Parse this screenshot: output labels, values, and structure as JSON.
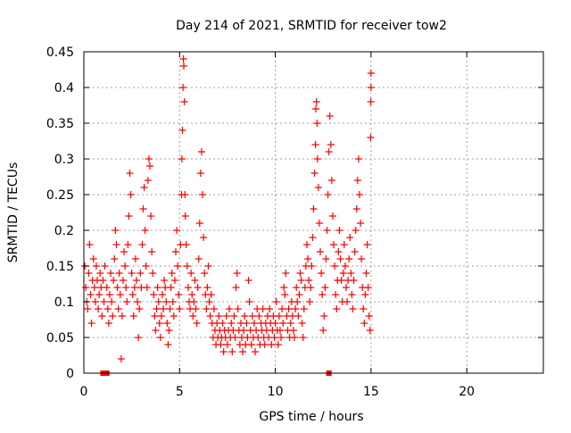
{
  "chart_data": {
    "type": "scatter",
    "title": "Day 214 of 2021, SRMTID for receiver tow2",
    "xlabel": "GPS time / hours",
    "ylabel": "SRMTID / TECUs",
    "xlim": [
      0,
      24
    ],
    "ylim": [
      0,
      0.45
    ],
    "x_ticks": [
      0,
      5,
      10,
      15,
      20
    ],
    "y_ticks": [
      0,
      0.05,
      0.1,
      0.15,
      0.2,
      0.25,
      0.3,
      0.35,
      0.4,
      0.45
    ],
    "x_tick_labels": [
      "0",
      "5",
      "10",
      "15",
      "20"
    ],
    "y_tick_labels": [
      "0",
      "0.05",
      "0.1",
      "0.15",
      "0.2",
      "0.25",
      "0.3",
      "0.35",
      "0.4",
      "0.45"
    ],
    "grid": true,
    "marker_color": "#ff0000",
    "series": [
      {
        "name": "SRMTID",
        "marker": "+",
        "x": [
          0.05,
          0.1,
          0.15,
          0.2,
          0.25,
          0.3,
          0.35,
          0.4,
          0.45,
          0.5,
          0.55,
          0.6,
          0.65,
          0.7,
          0.75,
          0.8,
          0.85,
          0.9,
          0.95,
          1.0,
          1.05,
          1.1,
          1.2,
          1.25,
          1.3,
          1.35,
          1.4,
          1.45,
          1.5,
          1.55,
          1.6,
          1.65,
          1.7,
          1.75,
          1.8,
          1.85,
          1.9,
          1.95,
          2.0,
          2.05,
          2.1,
          2.15,
          2.2,
          2.25,
          2.3,
          2.35,
          2.4,
          2.45,
          2.5,
          2.55,
          2.6,
          2.65,
          2.7,
          2.75,
          2.8,
          2.85,
          2.9,
          2.95,
          3.0,
          3.05,
          3.1,
          3.15,
          3.2,
          3.25,
          3.3,
          3.35,
          3.4,
          3.45,
          3.5,
          3.55,
          3.6,
          3.65,
          3.7,
          3.75,
          3.8,
          3.85,
          3.9,
          3.95,
          4.0,
          4.05,
          4.1,
          4.15,
          4.2,
          4.25,
          4.3,
          4.35,
          4.4,
          4.45,
          4.5,
          4.55,
          4.6,
          4.65,
          4.7,
          4.75,
          4.8,
          4.85,
          4.9,
          4.95,
          5.0,
          5.05,
          5.1,
          5.12,
          5.15,
          5.18,
          5.2,
          5.22,
          5.25,
          5.28,
          5.3,
          5.35,
          5.4,
          5.45,
          5.5,
          5.55,
          5.6,
          5.65,
          5.7,
          5.75,
          5.8,
          5.85,
          5.9,
          5.95,
          6.0,
          6.05,
          6.1,
          6.15,
          6.2,
          6.25,
          6.3,
          6.35,
          6.4,
          6.45,
          6.5,
          6.55,
          6.6,
          6.65,
          6.7,
          6.75,
          6.8,
          6.85,
          6.9,
          6.95,
          7.0,
          7.05,
          7.1,
          7.15,
          7.2,
          7.25,
          7.3,
          7.35,
          7.4,
          7.45,
          7.5,
          7.55,
          7.6,
          7.65,
          7.7,
          7.75,
          7.8,
          7.85,
          7.9,
          7.95,
          8.0,
          8.05,
          8.1,
          8.15,
          8.2,
          8.25,
          8.3,
          8.35,
          8.4,
          8.45,
          8.5,
          8.55,
          8.6,
          8.65,
          8.7,
          8.75,
          8.8,
          8.85,
          8.9,
          8.95,
          9.0,
          9.05,
          9.1,
          9.15,
          9.2,
          9.25,
          9.3,
          9.35,
          9.4,
          9.45,
          9.5,
          9.55,
          9.6,
          9.65,
          9.7,
          9.75,
          9.8,
          9.85,
          9.9,
          9.95,
          10.0,
          10.05,
          10.1,
          10.15,
          10.2,
          10.25,
          10.3,
          10.35,
          10.4,
          10.45,
          10.5,
          10.55,
          10.6,
          10.65,
          10.7,
          10.75,
          10.8,
          10.85,
          10.9,
          10.95,
          11.0,
          11.05,
          11.1,
          11.15,
          11.2,
          11.25,
          11.3,
          11.35,
          11.4,
          11.45,
          11.5,
          11.55,
          11.6,
          11.65,
          11.7,
          11.75,
          11.8,
          11.85,
          11.9,
          11.95,
          12.0,
          12.05,
          12.1,
          12.12,
          12.15,
          12.18,
          12.2,
          12.25,
          12.3,
          12.35,
          12.4,
          12.45,
          12.5,
          12.55,
          12.6,
          12.65,
          12.7,
          12.75,
          12.8,
          12.85,
          12.9,
          12.95,
          13.0,
          13.05,
          13.1,
          13.15,
          13.2,
          13.25,
          13.3,
          13.35,
          13.4,
          13.45,
          13.5,
          13.55,
          13.6,
          13.65,
          13.7,
          13.75,
          13.8,
          13.85,
          13.9,
          13.95,
          14.0,
          14.05,
          14.1,
          14.15,
          14.2,
          14.25,
          14.3,
          14.35,
          14.4,
          14.45,
          14.5,
          14.55,
          14.6,
          14.65,
          14.7,
          14.75,
          14.8,
          14.85,
          14.9,
          14.95,
          14.98,
          14.99,
          15.0,
          15.0
        ],
        "y": [
          0.15,
          0.12,
          0.1,
          0.09,
          0.14,
          0.18,
          0.11,
          0.07,
          0.13,
          0.16,
          0.12,
          0.1,
          0.15,
          0.13,
          0.09,
          0.11,
          0.14,
          0.12,
          0.08,
          0.13,
          0.1,
          0.15,
          0.12,
          0.09,
          0.07,
          0.11,
          0.14,
          0.1,
          0.08,
          0.13,
          0.16,
          0.2,
          0.18,
          0.12,
          0.09,
          0.14,
          0.11,
          0.02,
          0.08,
          0.13,
          0.17,
          0.15,
          0.12,
          0.1,
          0.18,
          0.22,
          0.28,
          0.25,
          0.14,
          0.11,
          0.08,
          0.12,
          0.16,
          0.13,
          0.1,
          0.05,
          0.09,
          0.14,
          0.12,
          0.18,
          0.23,
          0.26,
          0.2,
          0.15,
          0.12,
          0.27,
          0.3,
          0.29,
          0.22,
          0.17,
          0.14,
          0.11,
          0.08,
          0.06,
          0.09,
          0.12,
          0.1,
          0.07,
          0.05,
          0.08,
          0.11,
          0.09,
          0.13,
          0.12,
          0.1,
          0.07,
          0.04,
          0.06,
          0.09,
          0.12,
          0.14,
          0.1,
          0.08,
          0.13,
          0.17,
          0.2,
          0.15,
          0.11,
          0.09,
          0.18,
          0.25,
          0.3,
          0.34,
          0.4,
          0.44,
          0.43,
          0.38,
          0.25,
          0.22,
          0.18,
          0.15,
          0.12,
          0.1,
          0.09,
          0.14,
          0.11,
          0.08,
          0.1,
          0.13,
          0.09,
          0.07,
          0.12,
          0.16,
          0.21,
          0.28,
          0.31,
          0.25,
          0.19,
          0.14,
          0.11,
          0.09,
          0.12,
          0.15,
          0.1,
          0.08,
          0.11,
          0.07,
          0.05,
          0.09,
          0.06,
          0.04,
          0.07,
          0.05,
          0.08,
          0.06,
          0.04,
          0.05,
          0.07,
          0.03,
          0.06,
          0.05,
          0.08,
          0.04,
          0.06,
          0.09,
          0.05,
          0.07,
          0.03,
          0.06,
          0.08,
          0.05,
          0.12,
          0.14,
          0.09,
          0.06,
          0.04,
          0.07,
          0.05,
          0.03,
          0.06,
          0.08,
          0.04,
          0.07,
          0.05,
          0.13,
          0.1,
          0.06,
          0.04,
          0.08,
          0.05,
          0.07,
          0.03,
          0.06,
          0.09,
          0.05,
          0.08,
          0.04,
          0.07,
          0.06,
          0.09,
          0.05,
          0.04,
          0.07,
          0.06,
          0.08,
          0.05,
          0.09,
          0.07,
          0.04,
          0.06,
          0.08,
          0.05,
          0.07,
          0.1,
          0.06,
          0.04,
          0.08,
          0.06,
          0.05,
          0.09,
          0.07,
          0.12,
          0.11,
          0.14,
          0.08,
          0.06,
          0.09,
          0.05,
          0.07,
          0.1,
          0.08,
          0.06,
          0.05,
          0.09,
          0.12,
          0.1,
          0.08,
          0.11,
          0.14,
          0.13,
          0.07,
          0.05,
          0.09,
          0.12,
          0.15,
          0.18,
          0.16,
          0.13,
          0.1,
          0.12,
          0.15,
          0.19,
          0.23,
          0.28,
          0.32,
          0.37,
          0.38,
          0.35,
          0.3,
          0.26,
          0.21,
          0.17,
          0.14,
          0.11,
          0.06,
          0.08,
          0.12,
          0.16,
          0.2,
          0.25,
          0.31,
          0.36,
          0.32,
          0.27,
          0.22,
          0.18,
          0.15,
          0.11,
          0.09,
          0.13,
          0.17,
          0.2,
          0.16,
          0.13,
          0.1,
          0.14,
          0.18,
          0.15,
          0.12,
          0.1,
          0.13,
          0.16,
          0.19,
          0.14,
          0.11,
          0.09,
          0.13,
          0.17,
          0.2,
          0.23,
          0.27,
          0.3,
          0.25,
          0.21,
          0.16,
          0.12,
          0.09,
          0.07,
          0.11,
          0.14,
          0.18,
          0.12,
          0.08,
          0.06,
          0.33,
          0.38,
          0.4,
          0.42
        ],
        "zero_markers": [
          1.0,
          1.2,
          12.8
        ]
      }
    ]
  }
}
